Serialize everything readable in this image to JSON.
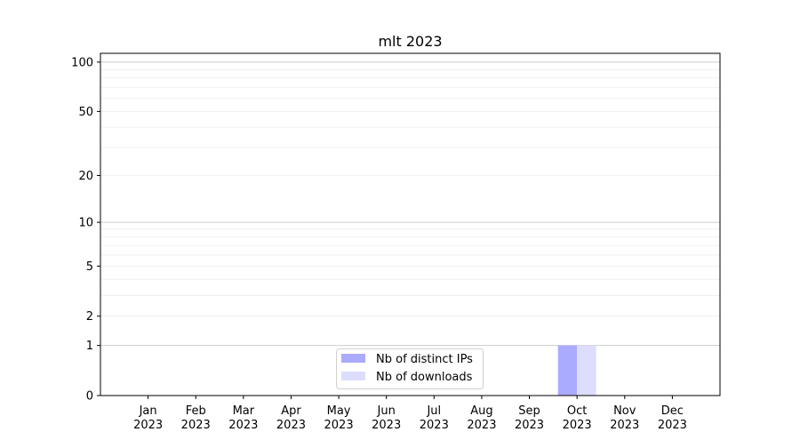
{
  "chart_data": {
    "type": "bar",
    "title": "mlt 2023",
    "xlabel": "",
    "ylabel": "",
    "categories": [
      "Jan\n2023",
      "Feb\n2023",
      "Mar\n2023",
      "Apr\n2023",
      "May\n2023",
      "Jun\n2023",
      "Jul\n2023",
      "Aug\n2023",
      "Sep\n2023",
      "Oct\n2023",
      "Nov\n2023",
      "Dec\n2023"
    ],
    "series": [
      {
        "name": "Nb of distinct IPs",
        "color": "#aaaaff",
        "values": [
          0,
          0,
          0,
          0,
          0,
          0,
          0,
          0,
          0,
          1,
          0,
          0
        ]
      },
      {
        "name": "Nb of downloads",
        "color": "#ddddff",
        "values": [
          0,
          0,
          0,
          0,
          0,
          0,
          0,
          0,
          0,
          1,
          0,
          0
        ]
      }
    ],
    "yscale": "log(1+y)",
    "ylim": [
      0,
      113
    ],
    "yticks": [
      0,
      1,
      2,
      5,
      10,
      20,
      50,
      100
    ],
    "grid": true,
    "legend": "bottom-center"
  }
}
